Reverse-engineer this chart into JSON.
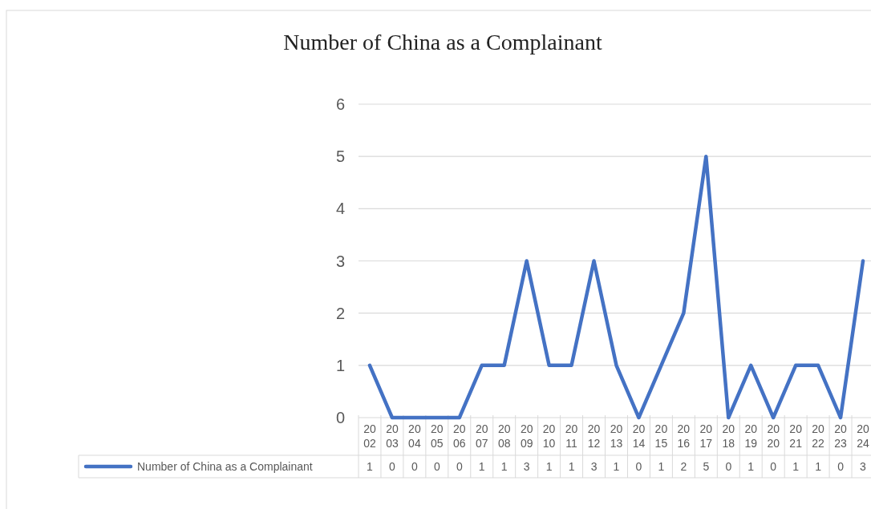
{
  "chart_data": {
    "type": "line",
    "title": "Number of China as a Complainant",
    "categories": [
      "2002",
      "2003",
      "2004",
      "2005",
      "2006",
      "2007",
      "2008",
      "2009",
      "2010",
      "2011",
      "2012",
      "2013",
      "2014",
      "2015",
      "2016",
      "2017",
      "2018",
      "2019",
      "2020",
      "2021",
      "2022",
      "2023",
      "2024"
    ],
    "series": [
      {
        "name": "Number of China as a Complainant",
        "color": "#4472c4",
        "values": [
          1,
          0,
          0,
          0,
          0,
          1,
          1,
          3,
          1,
          1,
          3,
          1,
          0,
          1,
          2,
          5,
          0,
          1,
          0,
          1,
          1,
          0,
          3
        ]
      }
    ],
    "ylim": [
      0,
      6
    ],
    "yticks": [
      0,
      1,
      2,
      3,
      4,
      5,
      6
    ],
    "grid": "y",
    "legend": "bottom",
    "data_labels": true,
    "marker": "none",
    "line_style": "solid"
  }
}
